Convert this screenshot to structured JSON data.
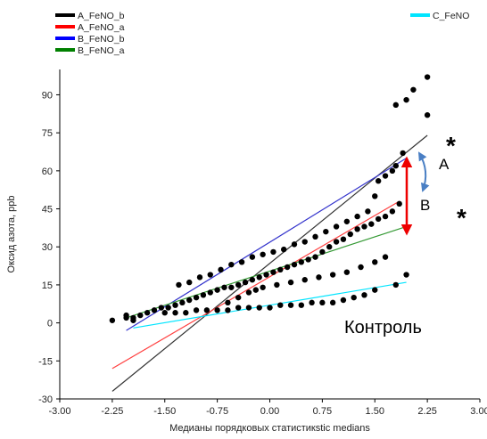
{
  "chart_data": {
    "type": "scatter",
    "xlabel": "Медианы порядковых статистикstic medians",
    "ylabel": "Оксид азота, ppb",
    "xlim": [
      -3.0,
      3.0
    ],
    "ylim": [
      -30,
      100
    ],
    "x_ticks": [
      "-3.00",
      "-2.25",
      "-1.50",
      "-0.75",
      "0.00",
      "0.75",
      "1.50",
      "2.25",
      "3.00"
    ],
    "y_ticks": [
      "-30",
      "-15",
      "0",
      "15",
      "30",
      "45",
      "60",
      "75",
      "90"
    ],
    "legend": [
      {
        "name": "A_FeNO_b",
        "color": "#000000"
      },
      {
        "name": "A_FeNO_a",
        "color": "#ff0000"
      },
      {
        "name": "B_FeNO_b",
        "color": "#0000ff"
      },
      {
        "name": "B_FeNO_a",
        "color": "#008000"
      },
      {
        "name": "C_FeNO",
        "color": "#00e5ff"
      }
    ],
    "fit_lines": [
      {
        "series": "A_FeNO_b",
        "color": "#333333",
        "x": [
          -2.25,
          2.25
        ],
        "y": [
          -27,
          74
        ]
      },
      {
        "series": "A_FeNO_a",
        "color": "#ff4040",
        "x": [
          -2.25,
          1.85
        ],
        "y": [
          -18,
          48
        ]
      },
      {
        "series": "B_FeNO_b",
        "color": "#3333cc",
        "x": [
          -2.05,
          1.95
        ],
        "y": [
          -3,
          65
        ]
      },
      {
        "series": "B_FeNO_a",
        "color": "#339933",
        "x": [
          -2.05,
          1.95
        ],
        "y": [
          2,
          38
        ]
      },
      {
        "series": "C_FeNO",
        "color": "#00e5ff",
        "x": [
          -1.95,
          1.95
        ],
        "y": [
          -2,
          16
        ]
      }
    ],
    "points": [
      [
        -2.25,
        1
      ],
      [
        -2.05,
        2
      ],
      [
        -2.05,
        3
      ],
      [
        -1.95,
        1
      ],
      [
        -1.95,
        2
      ],
      [
        -1.85,
        3
      ],
      [
        -1.75,
        4
      ],
      [
        -1.65,
        5
      ],
      [
        -1.55,
        6
      ],
      [
        -1.45,
        6
      ],
      [
        -1.35,
        7
      ],
      [
        -1.25,
        8
      ],
      [
        -1.15,
        9
      ],
      [
        -1.05,
        10
      ],
      [
        -0.95,
        11
      ],
      [
        -0.85,
        12
      ],
      [
        -0.75,
        13
      ],
      [
        -0.65,
        14
      ],
      [
        -0.55,
        14
      ],
      [
        -0.45,
        15
      ],
      [
        -0.35,
        16
      ],
      [
        -0.25,
        17
      ],
      [
        -0.15,
        18
      ],
      [
        -0.05,
        19
      ],
      [
        0.05,
        20
      ],
      [
        0.15,
        21
      ],
      [
        0.25,
        22
      ],
      [
        0.35,
        23
      ],
      [
        0.45,
        24
      ],
      [
        0.55,
        25
      ],
      [
        0.65,
        26
      ],
      [
        0.75,
        28
      ],
      [
        0.85,
        30
      ],
      [
        0.95,
        32
      ],
      [
        1.05,
        33
      ],
      [
        1.15,
        35
      ],
      [
        1.25,
        37
      ],
      [
        1.35,
        38
      ],
      [
        1.45,
        39
      ],
      [
        1.55,
        41
      ],
      [
        1.65,
        42
      ],
      [
        1.75,
        44
      ],
      [
        1.85,
        47
      ],
      [
        -1.3,
        15
      ],
      [
        -1.15,
        16
      ],
      [
        -1.0,
        18
      ],
      [
        -0.85,
        19
      ],
      [
        -0.7,
        21
      ],
      [
        -0.55,
        23
      ],
      [
        -0.4,
        24
      ],
      [
        -0.25,
        26
      ],
      [
        -0.1,
        27
      ],
      [
        0.05,
        28
      ],
      [
        0.2,
        29
      ],
      [
        0.35,
        31
      ],
      [
        0.5,
        32
      ],
      [
        0.65,
        34
      ],
      [
        0.8,
        36
      ],
      [
        0.95,
        38
      ],
      [
        1.1,
        40
      ],
      [
        1.25,
        42
      ],
      [
        1.4,
        44
      ],
      [
        1.5,
        50
      ],
      [
        1.55,
        56
      ],
      [
        1.65,
        58
      ],
      [
        1.75,
        60
      ],
      [
        1.8,
        62
      ],
      [
        1.9,
        67
      ],
      [
        2.25,
        97
      ],
      [
        2.05,
        92
      ],
      [
        1.95,
        88
      ],
      [
        1.8,
        86
      ],
      [
        2.25,
        82
      ],
      [
        -1.5,
        4
      ],
      [
        -1.35,
        4
      ],
      [
        -1.2,
        4
      ],
      [
        -1.05,
        5
      ],
      [
        -0.9,
        5
      ],
      [
        -0.75,
        5
      ],
      [
        -0.6,
        5
      ],
      [
        -0.45,
        6
      ],
      [
        -0.3,
        6
      ],
      [
        -0.15,
        6
      ],
      [
        0.0,
        6
      ],
      [
        0.15,
        7
      ],
      [
        0.3,
        7
      ],
      [
        0.45,
        7
      ],
      [
        0.6,
        8
      ],
      [
        0.75,
        8
      ],
      [
        0.9,
        8
      ],
      [
        1.05,
        9
      ],
      [
        1.2,
        10
      ],
      [
        1.35,
        11
      ],
      [
        1.5,
        13
      ],
      [
        1.8,
        15
      ],
      [
        1.95,
        19
      ],
      [
        -0.6,
        8
      ],
      [
        -0.45,
        10
      ],
      [
        -0.3,
        12
      ],
      [
        -0.2,
        13
      ],
      [
        -0.1,
        14
      ],
      [
        0.1,
        15
      ],
      [
        0.3,
        16
      ],
      [
        0.5,
        17
      ],
      [
        0.7,
        18
      ],
      [
        0.9,
        19
      ],
      [
        1.1,
        20
      ],
      [
        1.3,
        22
      ],
      [
        1.5,
        24
      ],
      [
        1.65,
        26
      ]
    ],
    "annotations": {
      "label_a": "A",
      "label_b": "B",
      "asterisk_1": "*",
      "asterisk_2": "*",
      "control_label": "Контроль"
    },
    "grid": false,
    "legend_position": "top"
  }
}
